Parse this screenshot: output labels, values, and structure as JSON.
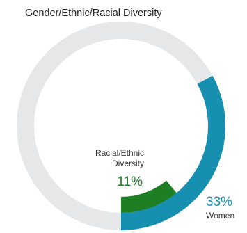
{
  "chart_data": {
    "type": "pie",
    "title": "Gender/Ethnic/Racial Diversity",
    "series": [
      {
        "name": "Women",
        "label_lines": [
          "Women"
        ],
        "value": 33,
        "value_label": "33%",
        "color": "#168fb0"
      },
      {
        "name": "Racial/Ethnic Diversity",
        "label_lines": [
          "Racial/Ethnic",
          "Diversity"
        ],
        "value": 11,
        "value_label": "11%",
        "color": "#1d7e24"
      }
    ],
    "background_ring_color": "#e6e7e8"
  }
}
